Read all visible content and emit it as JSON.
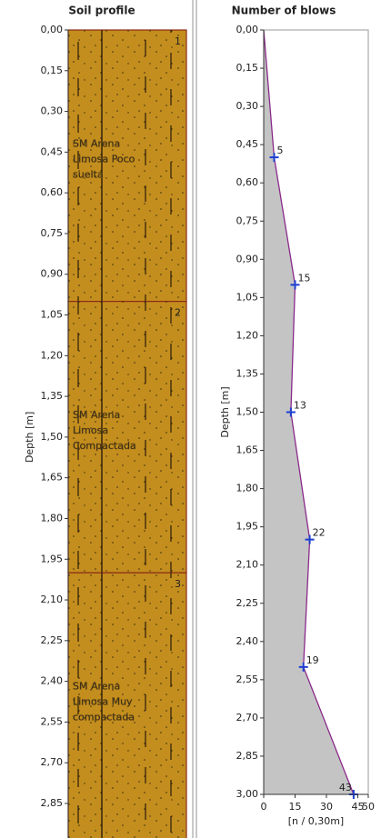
{
  "chart_data": [
    {
      "type": "soil-profile",
      "title": "Soil profile",
      "y_label": "Depth [m]",
      "ylim": [
        0,
        3
      ],
      "yticks": [
        {
          "value": 0,
          "label": "0,00"
        },
        {
          "value": 0.15,
          "label": "0,15"
        },
        {
          "value": 0.3,
          "label": "0,30"
        },
        {
          "value": 0.45,
          "label": "0,45"
        },
        {
          "value": 0.6,
          "label": "0,60"
        },
        {
          "value": 0.75,
          "label": "0,75"
        },
        {
          "value": 0.9,
          "label": "0,90"
        },
        {
          "value": 1.05,
          "label": "1,05"
        },
        {
          "value": 1.2,
          "label": "1,20"
        },
        {
          "value": 1.35,
          "label": "1,35"
        },
        {
          "value": 1.5,
          "label": "1,50"
        },
        {
          "value": 1.65,
          "label": "1,65"
        },
        {
          "value": 1.8,
          "label": "1,80"
        },
        {
          "value": 1.95,
          "label": "1,95"
        },
        {
          "value": 2.1,
          "label": "2,10"
        },
        {
          "value": 2.25,
          "label": "2,25"
        },
        {
          "value": 2.4,
          "label": "2,40"
        },
        {
          "value": 2.55,
          "label": "2,55"
        },
        {
          "value": 2.7,
          "label": "2,70"
        },
        {
          "value": 2.85,
          "label": "2,85"
        }
      ],
      "layers": [
        {
          "id": "1",
          "top": 0,
          "bottom": 1.0,
          "label_lines": [
            "SM Arena",
            "Limosa Poco",
            "suelta"
          ]
        },
        {
          "id": "2",
          "top": 1.0,
          "bottom": 2.0,
          "label_lines": [
            "SM Arena",
            "Limosa",
            "Compactada"
          ]
        },
        {
          "id": "3",
          "top": 2.0,
          "bottom": 3.0,
          "label_lines": [
            "SM Arena",
            "Limosa Muy",
            "compactada"
          ]
        }
      ],
      "color": "#c38e1e",
      "boundary_color": "#8b2b16"
    },
    {
      "type": "line",
      "title": "Number of blows",
      "y_label": "Depth [m]",
      "x_label": "[n / 0,30m]",
      "ylim": [
        0,
        3
      ],
      "xlim": [
        0,
        50
      ],
      "yticks": [
        {
          "value": 0,
          "label": "0,00"
        },
        {
          "value": 0.15,
          "label": "0,15"
        },
        {
          "value": 0.3,
          "label": "0,30"
        },
        {
          "value": 0.45,
          "label": "0,45"
        },
        {
          "value": 0.6,
          "label": "0,60"
        },
        {
          "value": 0.75,
          "label": "0,75"
        },
        {
          "value": 0.9,
          "label": "0,90"
        },
        {
          "value": 1.05,
          "label": "1,05"
        },
        {
          "value": 1.2,
          "label": "1,20"
        },
        {
          "value": 1.35,
          "label": "1,35"
        },
        {
          "value": 1.5,
          "label": "1,50"
        },
        {
          "value": 1.65,
          "label": "1,65"
        },
        {
          "value": 1.8,
          "label": "1,80"
        },
        {
          "value": 1.95,
          "label": "1,95"
        },
        {
          "value": 2.1,
          "label": "2,10"
        },
        {
          "value": 2.25,
          "label": "2,25"
        },
        {
          "value": 2.4,
          "label": "2,40"
        },
        {
          "value": 2.55,
          "label": "2,55"
        },
        {
          "value": 2.7,
          "label": "2,70"
        },
        {
          "value": 2.85,
          "label": "2,85"
        },
        {
          "value": 3,
          "label": "3,00"
        }
      ],
      "xticks": [
        0,
        15,
        30,
        45,
        50
      ],
      "line": {
        "depth": [
          0,
          0.5,
          1.0,
          1.5,
          2.0,
          2.5,
          3.0
        ],
        "blows": [
          0,
          5,
          15,
          13,
          22,
          19,
          43
        ]
      },
      "points": {
        "depth": [
          0.5,
          1.0,
          1.5,
          2.0,
          2.5,
          3.0
        ],
        "blows": [
          5,
          15,
          13,
          22,
          19,
          43
        ]
      },
      "line_color": "#8a2a8a",
      "area_color": "#c4c4c4",
      "marker_color": "#1f3fd0"
    }
  ]
}
